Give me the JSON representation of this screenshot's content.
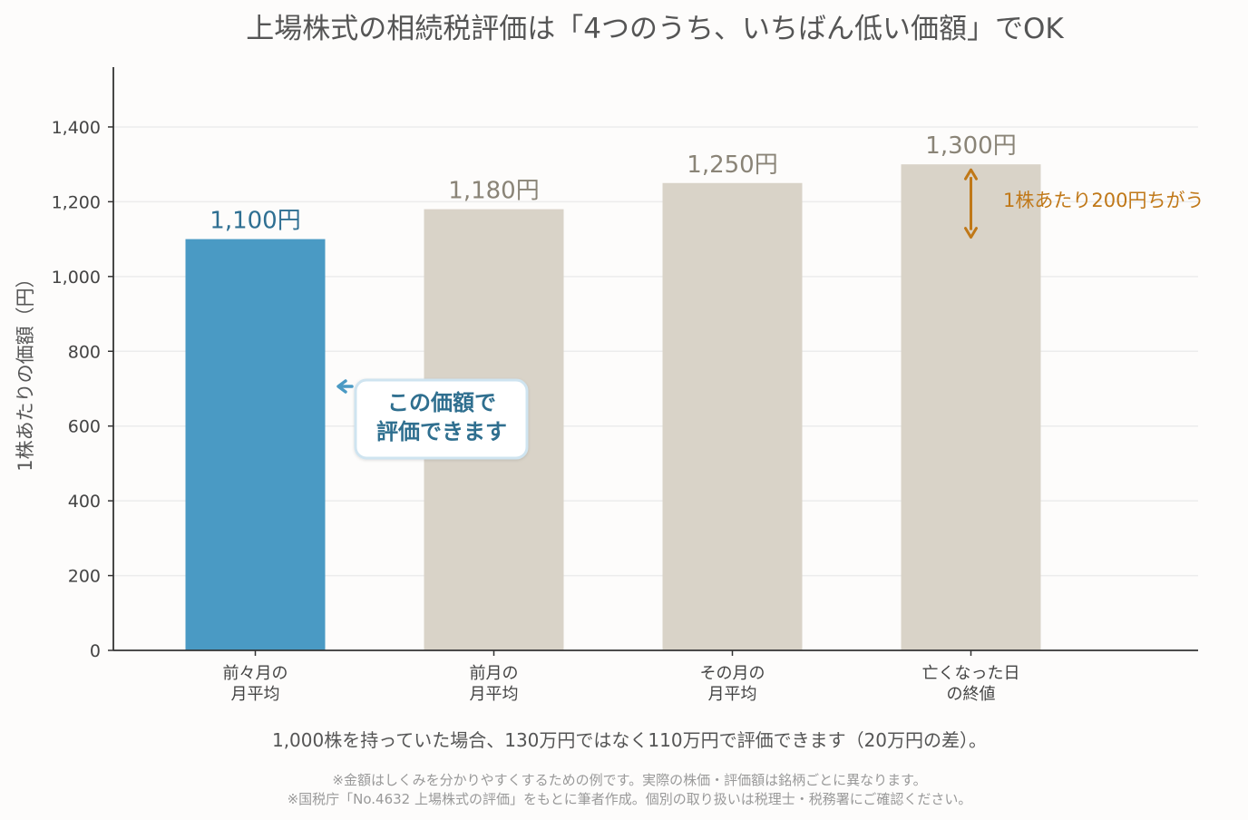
{
  "chart_data": {
    "type": "bar",
    "title": "上場株式の相続税評価は「4つのうち、いちばん低い価額」でOK",
    "ylabel": "1株あたりの価額（円）",
    "xlabel": "",
    "ylim": [
      0,
      1560
    ],
    "yticks": [
      0,
      200,
      400,
      600,
      800,
      1000,
      1200,
      1400
    ],
    "ytick_labels": [
      "0",
      "200",
      "400",
      "600",
      "800",
      "1,000",
      "1,200",
      "1,400"
    ],
    "grid": "horizontal",
    "categories": [
      [
        "前々月の",
        "月平均"
      ],
      [
        "前月の",
        "月平均"
      ],
      [
        "その月の",
        "月平均"
      ],
      [
        "亡くなった日",
        "の終値"
      ]
    ],
    "values": [
      1100,
      1180,
      1250,
      1300
    ],
    "data_labels": [
      "1,100円",
      "1,180円",
      "1,250円",
      "1,300円"
    ],
    "highlight_index": 0,
    "colors": {
      "highlight": "#4a9ac4",
      "other": "#d9d3c8",
      "highlight_label": "#2e6f92",
      "other_label": "#8a8477",
      "annotation": "#c07818",
      "axis": "#333333",
      "grid": "#ececec"
    },
    "difference_annotation": {
      "text": "1株あたり200円ちがう",
      "from": 1300,
      "to": 1100,
      "bar_index": 3
    },
    "callout": {
      "lines": [
        "この価額で",
        "評価できます"
      ],
      "points_to_bar": 0
    },
    "caption": "1,000株を持っていた場合、130万円ではなく110万円で評価できます（20万円の差）。",
    "notes": [
      "※金額はしくみを分かりやすくするための例です。実際の株価・評価額は銘柄ごとに異なります。",
      "※国税庁「No.4632 上場株式の評価」をもとに筆者作成。個別の取り扱いは税理士・税務署にご確認ください。"
    ]
  }
}
